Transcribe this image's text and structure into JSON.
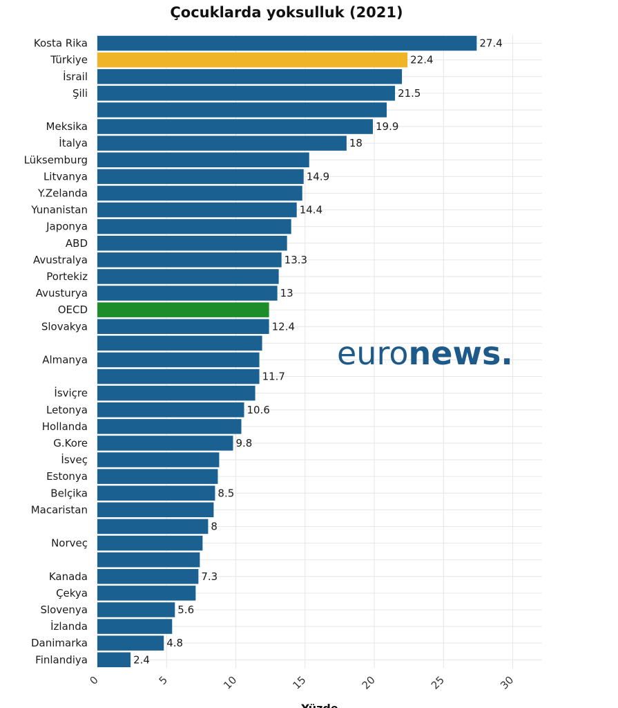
{
  "chart_data": {
    "type": "bar",
    "orientation": "horizontal",
    "title": "Çocuklarda yoksulluk (2021)",
    "xlabel": "Yüzde",
    "xlim": [
      0,
      32
    ],
    "xticks": [
      "0",
      "5",
      "10",
      "15",
      "20",
      "25",
      "30"
    ],
    "grid": true,
    "categories": [
      "Kosta Rika",
      "Türkiye",
      "İsrail",
      "Şili",
      "",
      "Meksika",
      "İtalya",
      "Lüksemburg",
      "Litvanya",
      "Y.Zelanda",
      "Yunanistan",
      "Japonya",
      "ABD",
      "Avustralya",
      "Portekiz",
      "Avusturya",
      "OECD",
      "Slovakya",
      "",
      "Almanya",
      "",
      "İsviçre",
      "Letonya",
      "Hollanda",
      "G.Kore",
      "İsveç",
      "Estonya",
      "Belçika",
      "Macaristan",
      "",
      "Norveç",
      "",
      "Kanada",
      "Çekya",
      "Slovenya",
      "İzlanda",
      "Danimarka",
      "Finlandiya"
    ],
    "values": [
      27.4,
      22.4,
      22.0,
      21.5,
      20.9,
      19.9,
      18,
      15.3,
      14.9,
      14.8,
      14.4,
      14.0,
      13.7,
      13.3,
      13.1,
      13,
      12.4,
      12.4,
      11.9,
      11.7,
      11.7,
      11.4,
      10.6,
      10.4,
      9.8,
      8.8,
      8.7,
      8.5,
      8.4,
      8,
      7.6,
      7.4,
      7.3,
      7.1,
      5.6,
      5.4,
      4.8,
      2.4
    ],
    "data_labels": [
      "27.4",
      "22.4",
      "",
      "21.5",
      "",
      "19.9",
      "18",
      "",
      "14.9",
      "",
      "14.4",
      "",
      "",
      "13.3",
      "",
      "13",
      "",
      "12.4",
      "",
      "",
      "11.7",
      "",
      "10.6",
      "",
      "9.8",
      "",
      "",
      "8.5",
      "",
      "8",
      "",
      "",
      "7.3",
      "",
      "5.6",
      "",
      "4.8",
      "2.4"
    ],
    "highlight": [
      "default",
      "turkey",
      "default",
      "default",
      "default",
      "default",
      "default",
      "default",
      "default",
      "default",
      "default",
      "default",
      "default",
      "default",
      "default",
      "default",
      "oecd",
      "default",
      "default",
      "default",
      "default",
      "default",
      "default",
      "default",
      "default",
      "default",
      "default",
      "default",
      "default",
      "default",
      "default",
      "default",
      "default",
      "default",
      "default",
      "default",
      "default",
      "default"
    ],
    "colors": {
      "default": "#1a6090",
      "turkey": "#f0b428",
      "oecd": "#1d8c2a",
      "grid": "#e6e6e6"
    }
  },
  "brand": {
    "light": "euro",
    "bold": "news.",
    "color": "#1d5a8a"
  }
}
